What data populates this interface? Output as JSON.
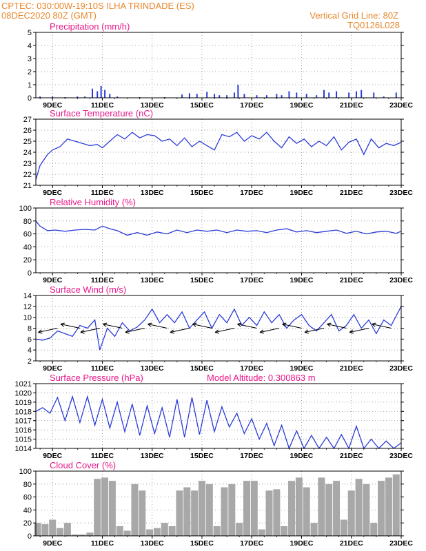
{
  "header": {
    "line1_left": "CPTEC:   030:00W-19:10S   ILHA TRINDADE (ES)",
    "line2_left": "08DEC2020 80Z (GMT)",
    "line1_right": "Vertical Grid Line: 80Z",
    "line2_right": "TQ0126L028"
  },
  "colors": {
    "header": "#e8862a",
    "panel_title": "#e8178a",
    "line": "#2a3bd8",
    "bar": "#2a3bd8",
    "cloud": "#a8a8a8",
    "grid": "#888888"
  },
  "x_axis": {
    "start_day": 8.33,
    "end_day": 23.0,
    "ticks": [
      {
        "day": 9,
        "label": "9DEC"
      },
      {
        "day": 11,
        "label": "11DEC"
      },
      {
        "day": 13,
        "label": "13DEC"
      },
      {
        "day": 15,
        "label": "15DEC"
      },
      {
        "day": 17,
        "label": "17DEC"
      },
      {
        "day": 19,
        "label": "19DEC"
      },
      {
        "day": 21,
        "label": "21DEC"
      },
      {
        "day": 23,
        "label": "23DEC"
      }
    ]
  },
  "chart_data": [
    {
      "type": "bar",
      "title": "Precipitation (mm/h)",
      "ylim": [
        0,
        5
      ],
      "yticks": [
        0,
        1,
        2,
        3,
        4,
        5
      ],
      "x": [
        8.5,
        9.0,
        9.5,
        10.0,
        10.3,
        10.6,
        10.8,
        10.95,
        11.1,
        11.3,
        11.6,
        12.5,
        13.5,
        14.2,
        14.5,
        14.8,
        15.2,
        15.5,
        15.7,
        16.0,
        16.3,
        16.45,
        16.7,
        17.2,
        17.6,
        18.0,
        18.2,
        18.5,
        18.8,
        19.2,
        19.6,
        19.9,
        20.1,
        20.4,
        20.9,
        21.2,
        21.4,
        21.9,
        22.3,
        22.8
      ],
      "values": [
        0.1,
        0.1,
        0.05,
        0.1,
        0.1,
        0.7,
        0.5,
        0.9,
        0.6,
        0.3,
        0.1,
        0.05,
        0.05,
        0.25,
        0.35,
        0.3,
        0.45,
        0.3,
        0.2,
        0.2,
        0.4,
        1.0,
        0.3,
        0.2,
        0.2,
        0.3,
        0.2,
        0.5,
        0.4,
        0.3,
        0.2,
        0.6,
        0.4,
        0.5,
        0.4,
        0.5,
        0.6,
        0.4,
        0.1,
        0.4
      ]
    },
    {
      "type": "line",
      "title": "Surface Temperature (nC)",
      "ylim": [
        21,
        27
      ],
      "yticks": [
        21,
        22,
        23,
        24,
        25,
        26,
        27
      ],
      "x": [
        8.33,
        8.5,
        8.8,
        9.0,
        9.3,
        9.6,
        9.9,
        10.2,
        10.5,
        10.8,
        11.0,
        11.3,
        11.6,
        11.9,
        12.2,
        12.5,
        12.8,
        13.1,
        13.4,
        13.7,
        14.0,
        14.3,
        14.6,
        14.9,
        15.2,
        15.5,
        15.8,
        16.1,
        16.4,
        16.7,
        17.0,
        17.3,
        17.6,
        17.9,
        18.2,
        18.5,
        18.8,
        19.1,
        19.4,
        19.7,
        20.0,
        20.3,
        20.6,
        20.9,
        21.2,
        21.5,
        21.8,
        22.1,
        22.4,
        22.7,
        23.0
      ],
      "values": [
        21.5,
        22.8,
        23.8,
        24.2,
        24.5,
        25.2,
        25.0,
        24.8,
        24.6,
        24.7,
        24.4,
        25.0,
        25.6,
        25.2,
        25.8,
        25.3,
        25.6,
        25.5,
        25.0,
        25.2,
        24.6,
        25.3,
        24.5,
        25.0,
        24.6,
        24.2,
        25.6,
        25.4,
        25.8,
        25.0,
        25.5,
        25.2,
        25.8,
        25.0,
        24.4,
        25.4,
        24.8,
        25.2,
        24.5,
        25.0,
        24.6,
        25.4,
        24.2,
        24.9,
        25.2,
        23.8,
        25.2,
        24.4,
        24.8,
        24.6,
        24.9
      ]
    },
    {
      "type": "line",
      "title": "Relative Humidity (%)",
      "ylim": [
        0,
        100
      ],
      "yticks": [
        0,
        20,
        40,
        60,
        80,
        100
      ],
      "x": [
        8.33,
        8.5,
        8.8,
        9.1,
        9.5,
        9.9,
        10.3,
        10.7,
        11.0,
        11.3,
        11.6,
        12.0,
        12.4,
        12.8,
        13.2,
        13.6,
        14.0,
        14.4,
        14.8,
        15.2,
        15.6,
        16.0,
        16.4,
        16.8,
        17.2,
        17.6,
        18.0,
        18.4,
        18.8,
        19.2,
        19.6,
        20.0,
        20.4,
        20.8,
        21.2,
        21.6,
        22.0,
        22.4,
        22.8,
        23.0
      ],
      "values": [
        80,
        72,
        65,
        66,
        64,
        66,
        67,
        66,
        72,
        68,
        65,
        58,
        62,
        58,
        63,
        60,
        66,
        62,
        66,
        64,
        66,
        62,
        66,
        64,
        65,
        62,
        66,
        68,
        63,
        65,
        62,
        64,
        66,
        61,
        64,
        60,
        63,
        64,
        61,
        64
      ]
    },
    {
      "type": "line",
      "title": "Surface Wind (m/s)",
      "ylim": [
        2,
        14
      ],
      "yticks": [
        2,
        4,
        6,
        8,
        10,
        12,
        14
      ],
      "x": [
        8.33,
        8.6,
        8.9,
        9.2,
        9.5,
        9.8,
        10.1,
        10.4,
        10.7,
        10.9,
        11.2,
        11.5,
        11.8,
        12.1,
        12.4,
        12.7,
        13.0,
        13.3,
        13.6,
        13.9,
        14.2,
        14.5,
        14.8,
        15.1,
        15.4,
        15.7,
        16.0,
        16.3,
        16.6,
        16.9,
        17.2,
        17.5,
        17.8,
        18.1,
        18.4,
        18.7,
        19.0,
        19.3,
        19.6,
        19.9,
        20.2,
        20.5,
        20.8,
        21.1,
        21.4,
        21.7,
        22.0,
        22.3,
        22.6,
        23.0
      ],
      "values": [
        6.0,
        5.8,
        6.2,
        7.5,
        7.0,
        6.5,
        8.5,
        8.0,
        9.5,
        4.0,
        8.0,
        6.5,
        9.0,
        7.5,
        8.2,
        9.5,
        11.5,
        9.0,
        10.5,
        9.0,
        11.0,
        8.0,
        9.5,
        11.0,
        8.0,
        10.5,
        9.0,
        11.5,
        8.5,
        10.0,
        8.5,
        11.0,
        9.0,
        10.5,
        8.0,
        9.5,
        10.5,
        8.5,
        7.5,
        9.0,
        10.5,
        7.5,
        8.5,
        10.5,
        8.0,
        9.5,
        7.0,
        9.5,
        8.5,
        12.0
      ]
    },
    {
      "type": "line",
      "title": "Surface Pressure (hPa)",
      "annotation": "Model Altitude: 0.300863 m",
      "ylim": [
        1014,
        1021
      ],
      "yticks": [
        1014,
        1015,
        1016,
        1017,
        1018,
        1019,
        1020,
        1021
      ],
      "x": [
        8.33,
        8.6,
        8.9,
        9.2,
        9.5,
        9.8,
        10.1,
        10.4,
        10.7,
        11.0,
        11.3,
        11.6,
        11.9,
        12.2,
        12.5,
        12.8,
        13.1,
        13.4,
        13.7,
        14.0,
        14.3,
        14.6,
        14.9,
        15.2,
        15.5,
        15.8,
        16.1,
        16.4,
        16.7,
        17.0,
        17.3,
        17.6,
        17.9,
        18.2,
        18.5,
        18.8,
        19.1,
        19.4,
        19.7,
        20.0,
        20.3,
        20.6,
        20.9,
        21.2,
        21.5,
        21.8,
        22.1,
        22.4,
        22.7,
        23.0
      ],
      "values": [
        1018.0,
        1018.4,
        1017.8,
        1019.5,
        1017.0,
        1019.6,
        1016.8,
        1019.6,
        1016.5,
        1019.3,
        1016.2,
        1019.0,
        1015.8,
        1018.8,
        1015.4,
        1018.6,
        1015.6,
        1018.4,
        1015.2,
        1019.3,
        1015.2,
        1019.5,
        1015.5,
        1019.2,
        1015.8,
        1018.5,
        1016.3,
        1017.8,
        1015.6,
        1017.2,
        1015.0,
        1016.7,
        1014.3,
        1016.5,
        1014.0,
        1015.9,
        1014.0,
        1015.4,
        1014.0,
        1015.2,
        1014.0,
        1015.5,
        1014.0,
        1016.4,
        1014.0,
        1015.0,
        1014.0,
        1014.8,
        1014.0,
        1014.6
      ]
    },
    {
      "type": "bar",
      "title": "Cloud Cover (%)",
      "ylim": [
        0,
        100
      ],
      "yticks": [
        0,
        20,
        40,
        60,
        80,
        100
      ],
      "x": [
        8.4,
        8.7,
        9.0,
        9.3,
        9.6,
        9.9,
        10.2,
        10.5,
        10.8,
        11.1,
        11.4,
        11.7,
        12.0,
        12.3,
        12.6,
        12.9,
        13.2,
        13.5,
        13.8,
        14.1,
        14.4,
        14.7,
        15.0,
        15.3,
        15.6,
        15.9,
        16.2,
        16.5,
        16.8,
        17.1,
        17.4,
        17.7,
        18.0,
        18.3,
        18.6,
        18.9,
        19.2,
        19.5,
        19.8,
        20.1,
        20.4,
        20.7,
        21.0,
        21.3,
        21.6,
        21.9,
        22.2,
        22.5,
        22.8
      ],
      "values": [
        20,
        18,
        25,
        12,
        20,
        2,
        2,
        5,
        88,
        90,
        85,
        15,
        8,
        80,
        70,
        10,
        12,
        20,
        15,
        70,
        75,
        70,
        85,
        80,
        15,
        75,
        80,
        20,
        85,
        85,
        10,
        70,
        72,
        15,
        85,
        90,
        75,
        20,
        90,
        80,
        85,
        25,
        70,
        88,
        80,
        20,
        85,
        90,
        95
      ]
    }
  ]
}
